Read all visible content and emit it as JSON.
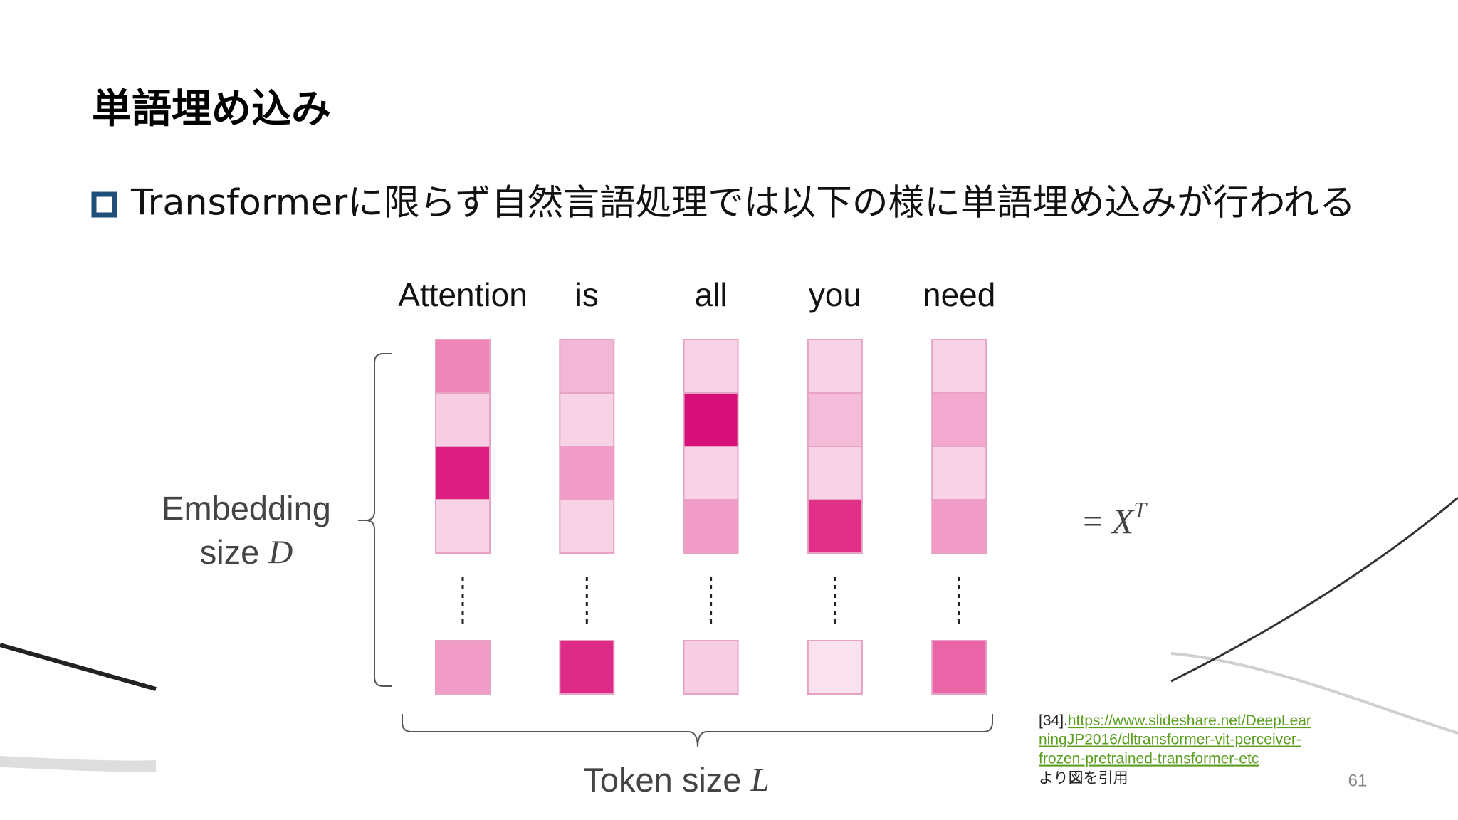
{
  "slide": {
    "title": "単語埋め込み",
    "bullet": "Transformerに限らず自然言語処理では以下の様に単語埋め込みが行われる",
    "figure": {
      "columns": [
        {
          "token": "Attention",
          "cells": [
            "#ee86b8",
            "#f7cde2",
            "#dc1e80",
            "#f8d3e5"
          ],
          "last": "#f09cc7"
        },
        {
          "token": "is",
          "cells": [
            "#f2b7d6",
            "#f8d3e5",
            "#f09cc7",
            "#f8d3e5"
          ],
          "last": "#df2b88"
        },
        {
          "token": "all",
          "cells": [
            "#f8d3e5",
            "#d70f78",
            "#f8d3e5",
            "#f09cc7"
          ],
          "last": "#f7cde2"
        },
        {
          "token": "you",
          "cells": [
            "#f8d3e5",
            "#f4bcd9",
            "#f8d3e5",
            "#e03087"
          ],
          "last": "#fae3ee"
        },
        {
          "token": "need",
          "cells": [
            "#f8d3e5",
            "#f2a8cf",
            "#f8d3e5",
            "#f09cc7"
          ],
          "last": "#e965a8"
        }
      ],
      "embedding_label": {
        "line1": "Embedding",
        "line2": "size",
        "variable": "D"
      },
      "token_label": {
        "text": "Token size",
        "variable": "L"
      },
      "equation": {
        "sign": "=",
        "symbol": "X",
        "superscript": "T"
      }
    },
    "citation": {
      "ref": "[34].",
      "link_lines": [
        "https://www.slideshare.net/DeepLear",
        "ningJP2016/dltransformer-vit-perceiver-",
        "frozen-pretrained-transformer-etc"
      ],
      "note": "より図を引用"
    },
    "page_number": "61"
  }
}
